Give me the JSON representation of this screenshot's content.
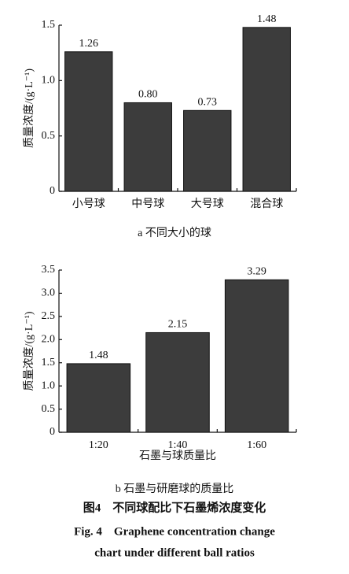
{
  "chart_data": [
    {
      "type": "bar",
      "y_label": "质量浓度/(g·L⁻¹)",
      "categories": [
        "小号球",
        "中号球",
        "大号球",
        "混合球"
      ],
      "values": [
        1.26,
        0.8,
        0.73,
        1.48
      ],
      "value_labels": [
        "1.26",
        "0.80",
        "0.73",
        "1.48"
      ],
      "color": "#3c3c3c",
      "ylim": [
        0,
        1.5
      ],
      "yticks": [
        0,
        0.5,
        {
          "value": 1,
          "label": "1.0"
        },
        1.5
      ],
      "grid": false,
      "caption": "a 不同大小的球"
    },
    {
      "type": "bar",
      "y_label": "质量浓度/(g·L⁻¹)",
      "x_label": "石墨与球质量比",
      "categories": [
        "1:20",
        "1:40",
        "1:60"
      ],
      "values": [
        1.48,
        2.15,
        3.29
      ],
      "value_labels": [
        "1.48",
        "2.15",
        "3.29"
      ],
      "color": "#3c3c3c",
      "ylim": [
        0,
        3.5
      ],
      "yticks": [
        0,
        0.5,
        {
          "value": 1,
          "label": "1.0"
        },
        1.5,
        {
          "value": 2,
          "label": "2.0"
        },
        2.5,
        {
          "value": 3,
          "label": "3.0"
        },
        3.5
      ],
      "grid": false,
      "caption": "b 石墨与研磨球的质量比"
    }
  ],
  "figure_caption": {
    "zh": "图4　不同球配比下石墨烯浓度变化",
    "en": [
      "Fig. 4　Graphene concentration change",
      "chart under different ball ratios"
    ]
  }
}
